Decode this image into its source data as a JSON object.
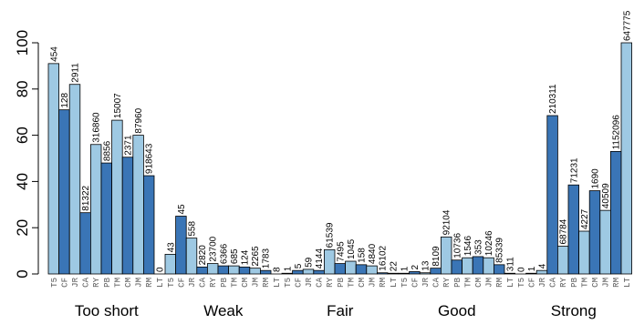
{
  "chart_data": {
    "type": "bar",
    "title": "",
    "xlabel": "",
    "ylabel": "",
    "ylim": [
      0,
      100
    ],
    "yticks": [
      0,
      20,
      40,
      60,
      80,
      100
    ],
    "grid": false,
    "legend": "none",
    "subcategories": [
      "T5",
      "CF",
      "JR",
      "CA",
      "RY",
      "PB",
      "TM",
      "CM",
      "JM",
      "RM",
      "LT"
    ],
    "colors": {
      "light": "#9ec9e3",
      "dark": "#3a75b6",
      "outline": "#000000"
    },
    "groups": [
      {
        "name": "Too short",
        "values": [
          91,
          71,
          82,
          26.5,
          56,
          48,
          66.5,
          50.5,
          60,
          42.5,
          0
        ],
        "labels": [
          "454",
          "128",
          "2911",
          "81322",
          "316860",
          "8856",
          "15007",
          "2371",
          "87960",
          "918643",
          "0"
        ]
      },
      {
        "name": "Weak",
        "values": [
          8.5,
          25,
          15.5,
          3,
          4.5,
          3.5,
          3.5,
          3,
          2.5,
          1.5,
          0
        ],
        "labels": [
          "43",
          "45",
          "558",
          "2820",
          "23700",
          "6366",
          "685",
          "124",
          "2265",
          "1783",
          "8"
        ]
      },
      {
        "name": "Fair",
        "values": [
          0.3,
          1.5,
          2,
          1.5,
          10.5,
          4.5,
          5.5,
          4,
          3.5,
          0.5,
          0.3
        ],
        "labels": [
          "1",
          "5",
          "59",
          "4144",
          "61539",
          "7495",
          "1045",
          "158",
          "4840",
          "16102",
          "22"
        ]
      },
      {
        "name": "Good",
        "values": [
          0.3,
          1,
          0.5,
          2.5,
          16,
          6,
          7,
          7.5,
          7,
          4,
          0.3
        ],
        "labels": [
          "1",
          "2",
          "13",
          "8109",
          "92104",
          "10736",
          "1546",
          "353",
          "10246",
          "85339",
          "311"
        ]
      },
      {
        "name": "Strong",
        "values": [
          0,
          0.3,
          1.5,
          68.5,
          12,
          38.5,
          18.5,
          36,
          27.5,
          53,
          100
        ],
        "labels": [
          "0",
          "1",
          "4",
          "210311",
          "68784",
          "71231",
          "4227",
          "1690",
          "40509",
          "1152096",
          "647775"
        ]
      }
    ]
  }
}
